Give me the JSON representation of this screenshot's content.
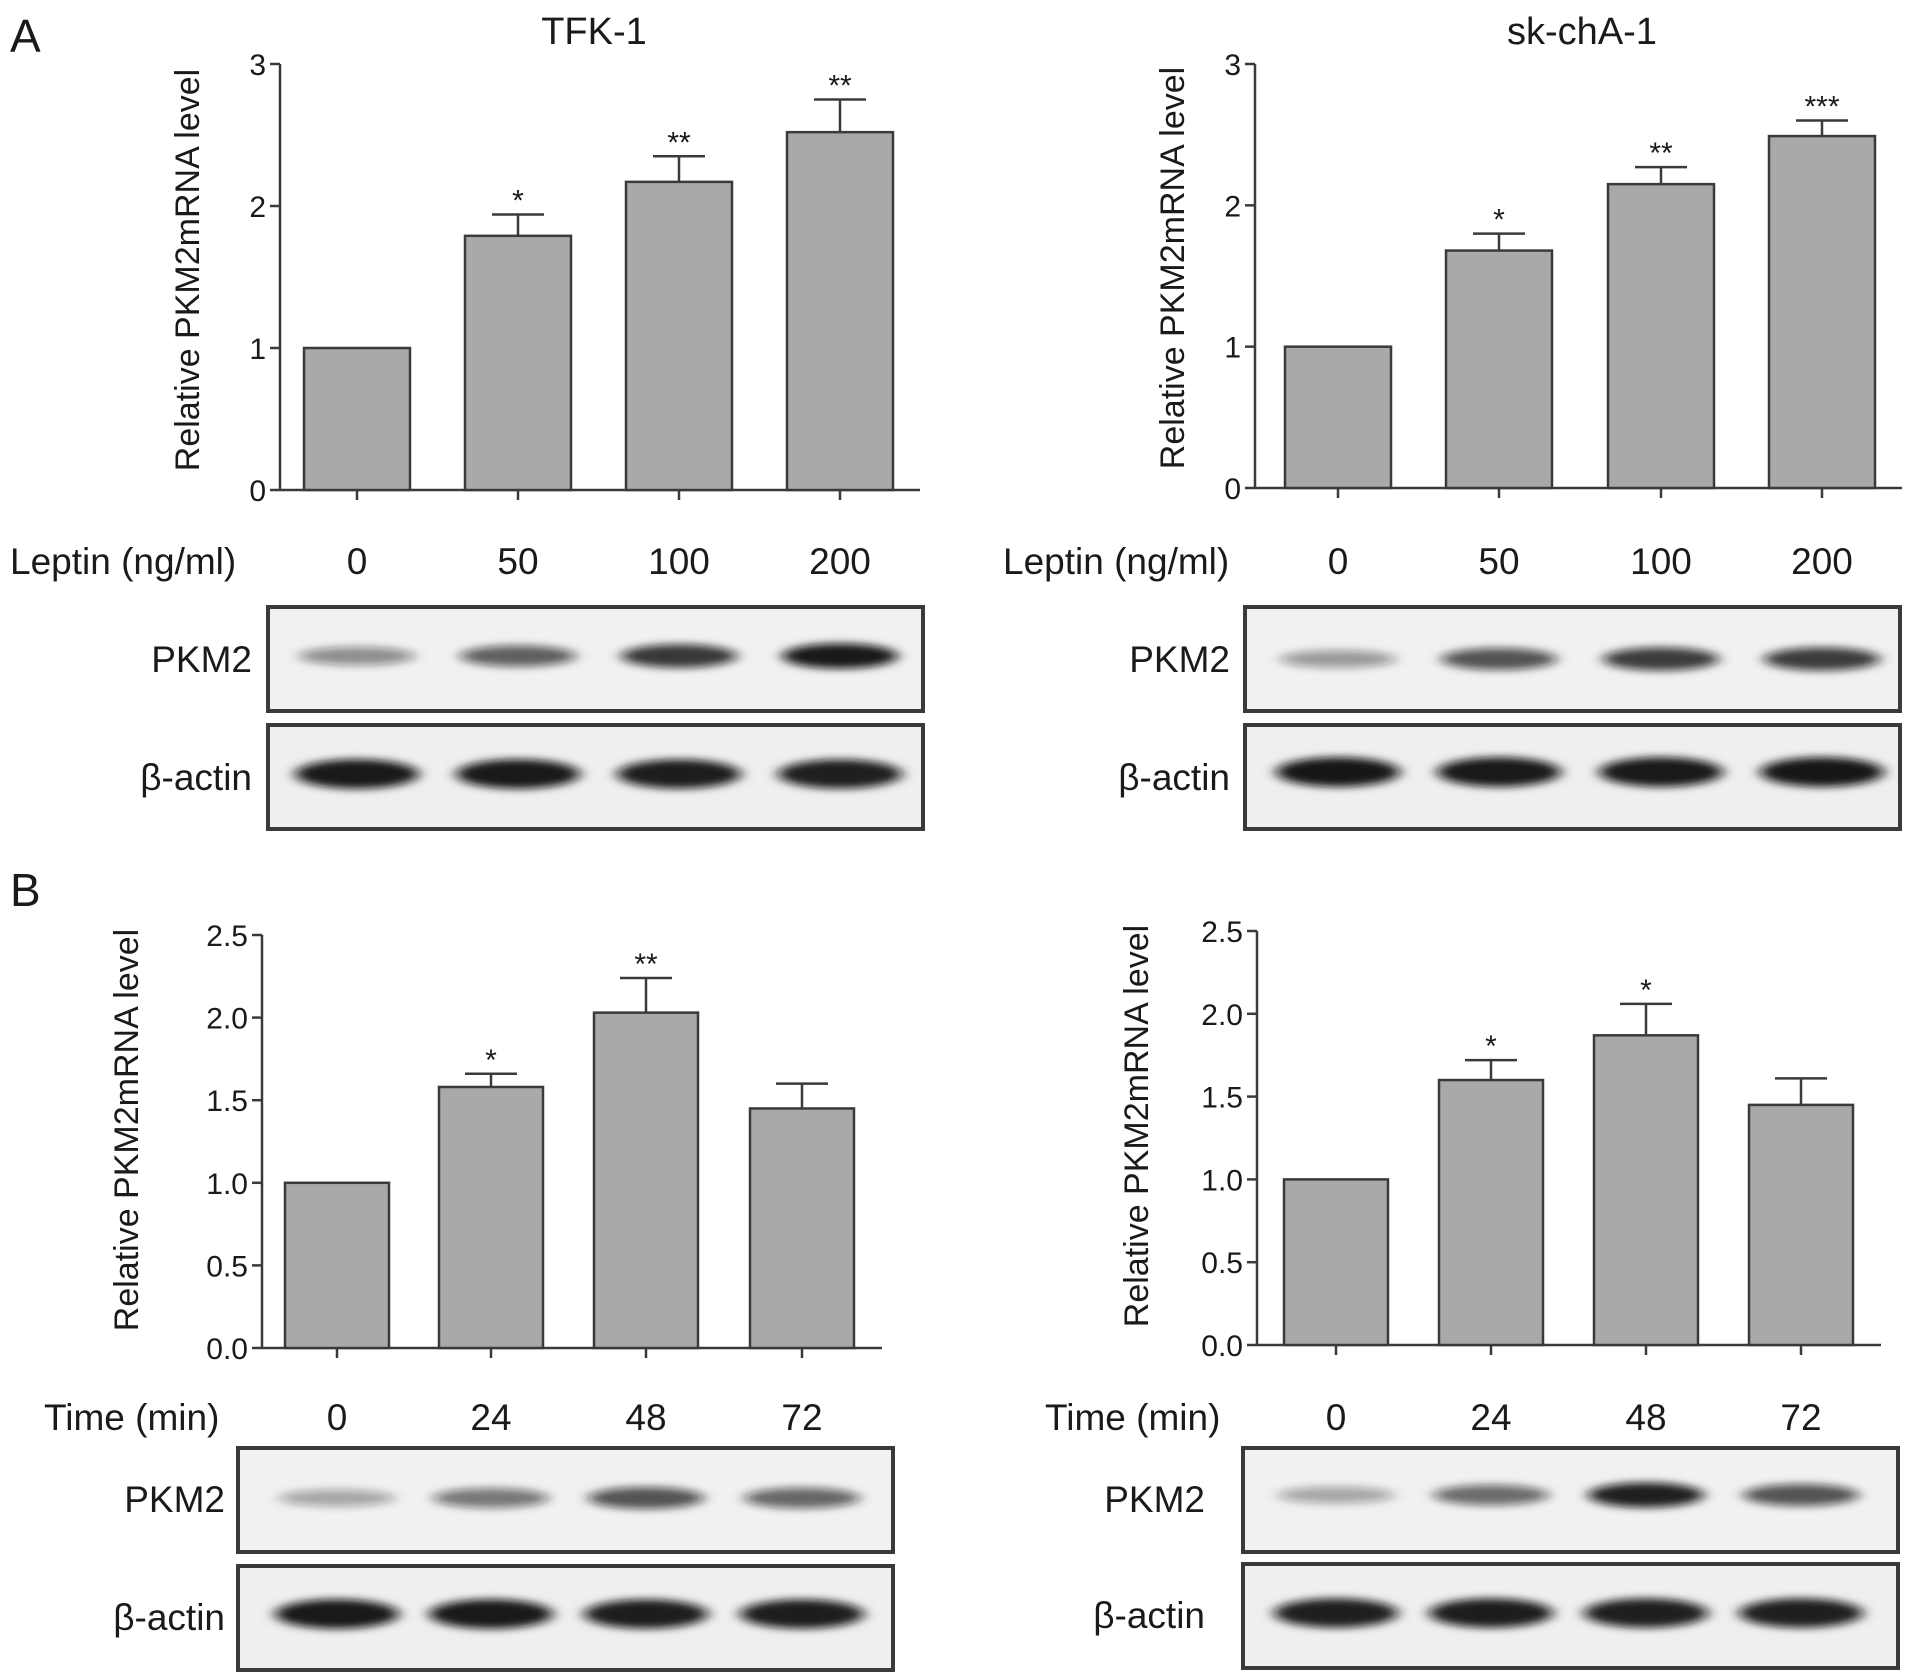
{
  "panel_labels": [
    "A",
    "B"
  ],
  "blot_labels": {
    "target": "PKM2",
    "loading": "β-actin"
  },
  "colors": {
    "bar_fill": "#a9a9a9",
    "bar_stroke": "#3a3a3a",
    "axis": "#3a3a3a",
    "text": "#1a1a1a",
    "blot_frame": "#3a3a3a",
    "band": "#111111"
  },
  "chart_data": [
    {
      "type": "bar",
      "panel": "A",
      "title": "TFK-1",
      "ylabel": "Relative PKM2mRNA level",
      "xlabel": "Leptin (ng/ml)",
      "categories": [
        "0",
        "50",
        "100",
        "200"
      ],
      "values": [
        1.0,
        1.79,
        2.17,
        2.52
      ],
      "errors": [
        0,
        0.15,
        0.18,
        0.23
      ],
      "significance": [
        "",
        "*",
        "**",
        "**"
      ],
      "ylim": [
        0,
        3
      ],
      "yticks": [
        "0",
        "1",
        "2",
        "3"
      ],
      "grid": false,
      "blot_band_intensity": {
        "target": [
          0.45,
          0.65,
          0.82,
          0.95
        ],
        "loading": [
          0.95,
          0.95,
          0.93,
          0.92
        ]
      }
    },
    {
      "type": "bar",
      "panel": "A",
      "title": "sk-chA-1",
      "ylabel": "Relative PKM2mRNA level",
      "xlabel": "Leptin (ng/ml)",
      "categories": [
        "0",
        "50",
        "100",
        "200"
      ],
      "values": [
        1.0,
        1.68,
        2.15,
        2.49
      ],
      "errors": [
        0,
        0.12,
        0.12,
        0.11
      ],
      "significance": [
        "",
        "*",
        "**",
        "***"
      ],
      "ylim": [
        0,
        3
      ],
      "yticks": [
        "0",
        "1",
        "2",
        "3"
      ],
      "grid": false,
      "blot_band_intensity": {
        "target": [
          0.4,
          0.7,
          0.8,
          0.8
        ],
        "loading": [
          0.96,
          0.95,
          0.95,
          0.96
        ]
      }
    },
    {
      "type": "bar",
      "panel": "B",
      "title": "",
      "ylabel": "Relative PKM2mRNA level",
      "xlabel": "Time (min)",
      "categories": [
        "0",
        "24",
        "48",
        "72"
      ],
      "values": [
        1.0,
        1.58,
        2.03,
        1.45
      ],
      "errors": [
        0,
        0.08,
        0.21,
        0.15
      ],
      "significance": [
        "",
        "*",
        "**",
        ""
      ],
      "ylim": [
        0,
        2.5
      ],
      "yticks": [
        "0.0",
        "0.5",
        "1.0",
        "1.5",
        "2.0",
        "2.5"
      ],
      "grid": false,
      "blot_band_intensity": {
        "target": [
          0.35,
          0.55,
          0.7,
          0.62
        ],
        "loading": [
          0.95,
          0.95,
          0.93,
          0.93
        ]
      }
    },
    {
      "type": "bar",
      "panel": "B",
      "title": "",
      "ylabel": "Relative PKM2mRNA level",
      "xlabel": "Time (min)",
      "categories": [
        "0",
        "24",
        "48",
        "72"
      ],
      "values": [
        1.0,
        1.6,
        1.87,
        1.45
      ],
      "errors": [
        0,
        0.12,
        0.19,
        0.16
      ],
      "significance": [
        "",
        "*",
        "*",
        ""
      ],
      "ylim": [
        0,
        2.5
      ],
      "yticks": [
        "0.0",
        "0.5",
        "1.0",
        "1.5",
        "2.0",
        "2.5"
      ],
      "grid": false,
      "blot_band_intensity": {
        "target": [
          0.35,
          0.6,
          0.92,
          0.7
        ],
        "loading": [
          0.92,
          0.93,
          0.92,
          0.92
        ]
      }
    }
  ]
}
